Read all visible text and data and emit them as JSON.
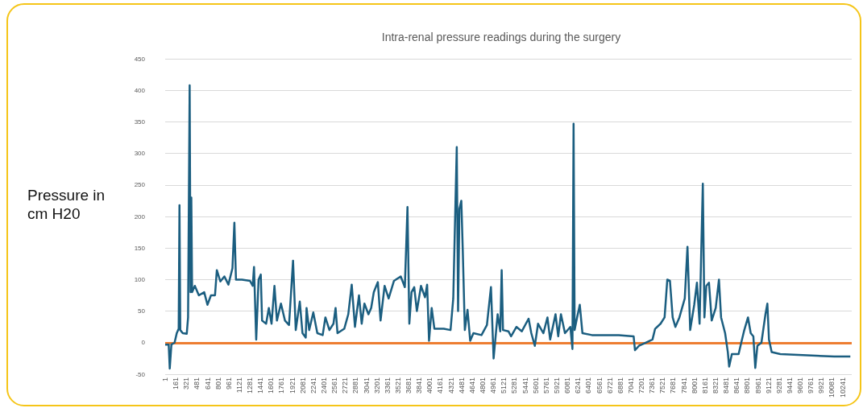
{
  "chart_data": {
    "type": "line",
    "title": "Intra-renal pressure readings during the surgery",
    "ylabel": "Pressure in cm H20",
    "x": [
      1,
      54,
      70,
      95,
      143,
      176,
      205,
      217,
      229,
      266,
      327,
      347,
      371,
      384,
      396,
      408,
      449,
      510,
      591,
      640,
      693,
      754,
      782,
      835,
      896,
      957,
      1018,
      1047,
      1071,
      1161,
      1283,
      1324,
      1344,
      1377,
      1413,
      1446,
      1466,
      1527,
      1568,
      1609,
      1653,
      1690,
      1751,
      1812,
      1873,
      1934,
      1975,
      2036,
      2077,
      2126,
      2138,
      2178,
      2240,
      2301,
      2382,
      2423,
      2484,
      2545,
      2577,
      2606,
      2708,
      2769,
      2821,
      2870,
      2931,
      2972,
      3013,
      3074,
      3115,
      3155,
      3216,
      3257,
      3318,
      3379,
      3460,
      3562,
      3624,
      3664,
      3692,
      3725,
      3766,
      3806,
      3868,
      3929,
      3961,
      3990,
      4030,
      4071,
      4213,
      4315,
      4356,
      4409,
      4429,
      4449,
      4478,
      4499,
      4531,
      4572,
      4612,
      4661,
      4783,
      4865,
      4926,
      4966,
      5027,
      5067,
      5088,
      5108,
      5190,
      5230,
      5312,
      5393,
      5495,
      5536,
      5589,
      5638,
      5719,
      5780,
      5821,
      5902,
      5943,
      5984,
      6045,
      6126,
      6158,
      6175,
      6191,
      6228,
      6269,
      6309,
      6452,
      6655,
      6859,
      7083,
      7103,
      7164,
      7266,
      7368,
      7408,
      7490,
      7551,
      7592,
      7632,
      7673,
      7714,
      7775,
      7856,
      7897,
      7938,
      7999,
      8040,
      8080,
      8129,
      8153,
      8182,
      8222,
      8263,
      8324,
      8373,
      8405,
      8466,
      8507,
      8527,
      8568,
      8670,
      8710,
      8751,
      8812,
      8853,
      8893,
      8922,
      8954,
      9015,
      9076,
      9105,
      9129,
      9170,
      9300,
      9707,
      10114,
      10359
    ],
    "series": [
      {
        "color": "#1b5e80",
        "values": [
          -3,
          -3,
          -41,
          -3,
          0,
          15,
          22,
          218,
          20,
          15,
          14,
          40,
          408,
          80,
          230,
          80,
          90,
          75,
          80,
          60,
          75,
          75,
          115,
          97,
          105,
          92,
          118,
          190,
          100,
          100,
          98,
          90,
          120,
          5,
          100,
          108,
          35,
          30,
          55,
          30,
          90,
          35,
          62,
          35,
          28,
          130,
          20,
          65,
          15,
          8,
          55,
          20,
          48,
          15,
          12,
          40,
          20,
          30,
          55,
          15,
          22,
          45,
          92,
          25,
          75,
          30,
          62,
          45,
          55,
          80,
          96,
          35,
          90,
          70,
          98,
          105,
          88,
          215,
          30,
          80,
          88,
          50,
          90,
          72,
          92,
          3,
          55,
          22,
          22,
          20,
          70,
          310,
          50,
          212,
          225,
          150,
          20,
          52,
          3,
          15,
          12,
          28,
          88,
          -25,
          45,
          18,
          115,
          20,
          18,
          10,
          25,
          18,
          38,
          15,
          -5,
          30,
          15,
          40,
          5,
          45,
          10,
          45,
          15,
          25,
          -10,
          347,
          20,
          40,
          60,
          15,
          12,
          12,
          12,
          10,
          -12,
          -5,
          0,
          5,
          22,
          30,
          40,
          100,
          98,
          40,
          25,
          40,
          70,
          152,
          20,
          60,
          95,
          30,
          252,
          40,
          90,
          95,
          35,
          55,
          100,
          40,
          15,
          -15,
          -38,
          -18,
          -18,
          0,
          18,
          40,
          15,
          10,
          -40,
          -5,
          0,
          45,
          62,
          5,
          -15,
          -18,
          -20,
          -22,
          -22
        ]
      }
    ],
    "xlim": [
      1,
      10380
    ],
    "xticks": [
      1,
      161,
      321,
      481,
      641,
      801,
      961,
      1121,
      1281,
      1441,
      1601,
      1761,
      1921,
      2081,
      2241,
      2401,
      2561,
      2721,
      2881,
      3041,
      3201,
      3361,
      3521,
      3681,
      3841,
      4001,
      4161,
      4321,
      4481,
      4641,
      4801,
      4961,
      5121,
      5281,
      5441,
      5601,
      5761,
      5921,
      6081,
      6241,
      6401,
      6561,
      6721,
      6881,
      7041,
      7201,
      7361,
      7521,
      7681,
      7841,
      8001,
      8161,
      8321,
      8481,
      8641,
      8801,
      8961,
      9121,
      9281,
      9441,
      9601,
      9761,
      9921,
      10081,
      10241
    ],
    "ylim": [
      -50,
      450
    ],
    "yticks": [
      -50,
      0,
      50,
      100,
      150,
      200,
      250,
      300,
      350,
      400,
      450
    ],
    "ref_lines": [
      {
        "axis": "y",
        "value": 0,
        "color": "#ed7d31"
      }
    ],
    "grid": "y",
    "marker": "none",
    "line_style": "solid"
  }
}
